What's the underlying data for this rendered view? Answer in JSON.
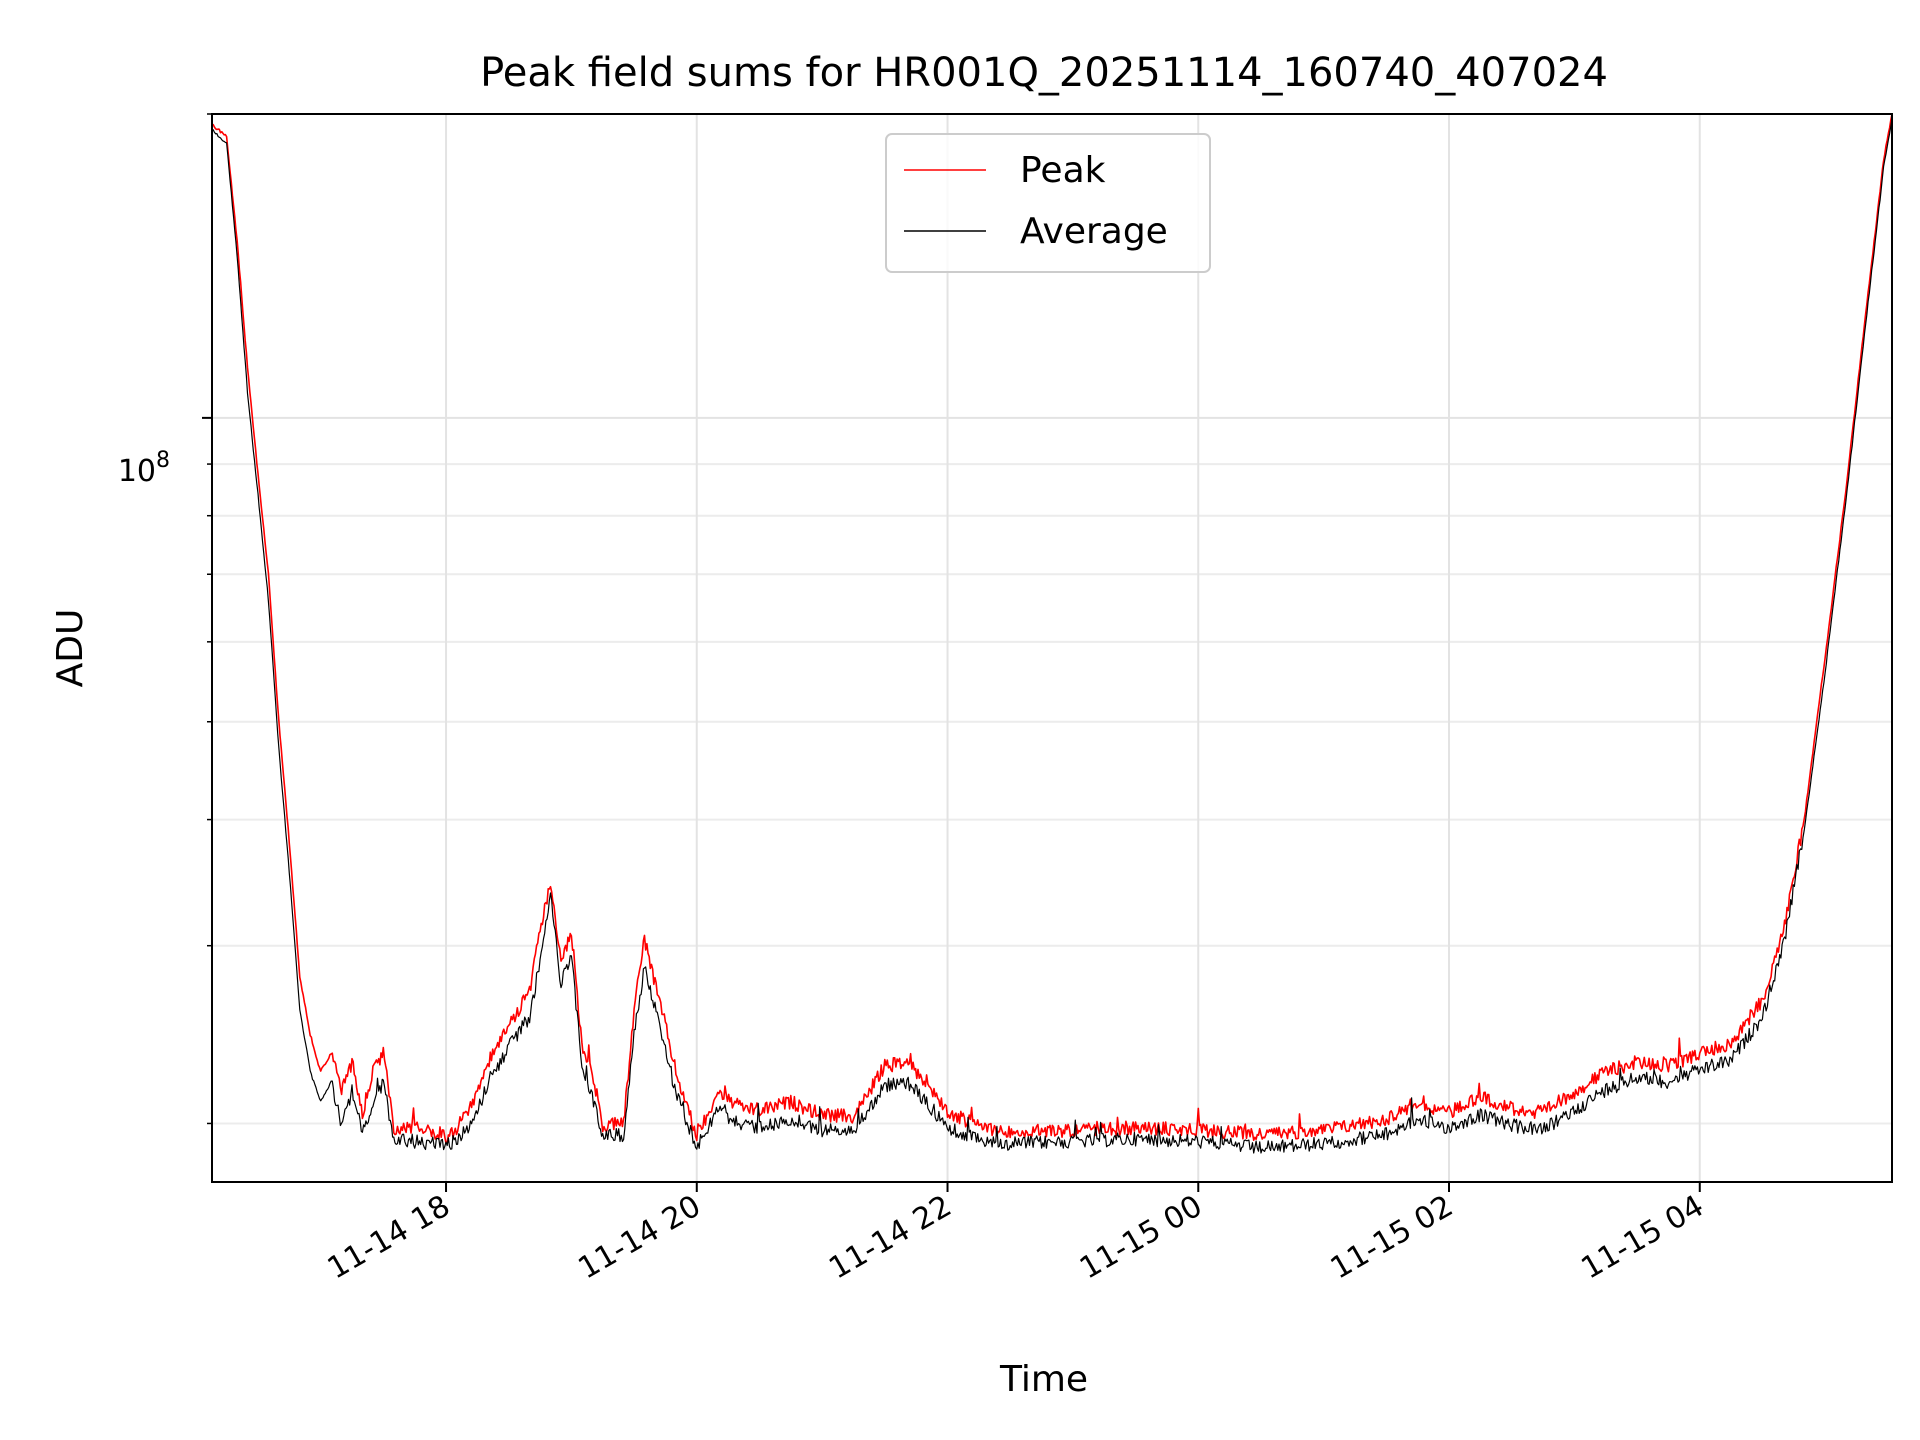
{
  "chart_data": {
    "type": "line",
    "title": "Peak field sums for HR001Q_20251114_160740_407024",
    "xlabel": "Time",
    "ylabel": "ADU",
    "yscale": "log",
    "ylim": [
      17500000,
      200000000
    ],
    "xlim": [
      "2025-11-14T16:08",
      "2025-11-15T05:32"
    ],
    "grid": true,
    "legend_position": "top-center",
    "x_ticks": [
      {
        "label": "11-14 18",
        "time": "2025-11-14T18:00"
      },
      {
        "label": "11-14 20",
        "time": "2025-11-14T20:00"
      },
      {
        "label": "11-14 22",
        "time": "2025-11-14T22:00"
      },
      {
        "label": "11-15 00",
        "time": "2025-11-15T00:00"
      },
      {
        "label": "11-15 02",
        "time": "2025-11-15T02:00"
      },
      {
        "label": "11-15 04",
        "time": "2025-11-15T04:00"
      }
    ],
    "y_ticks": [
      {
        "label": "10",
        "exponent": "8",
        "value": 100000000
      }
    ],
    "series": [
      {
        "name": "Peak",
        "color": "#ff0000",
        "points": [
          [
            "2025-11-14T16:08",
            195000000
          ],
          [
            "2025-11-14T16:15",
            190000000
          ],
          [
            "2025-11-14T16:20",
            150000000
          ],
          [
            "2025-11-14T16:25",
            112000000
          ],
          [
            "2025-11-14T16:30",
            88000000
          ],
          [
            "2025-11-14T16:35",
            70000000
          ],
          [
            "2025-11-14T16:40",
            50000000
          ],
          [
            "2025-11-14T16:45",
            38000000
          ],
          [
            "2025-11-14T16:50",
            28000000
          ],
          [
            "2025-11-14T16:55",
            24500000
          ],
          [
            "2025-11-14T17:00",
            22500000
          ],
          [
            "2025-11-14T17:05",
            23500000
          ],
          [
            "2025-11-14T17:10",
            21500000
          ],
          [
            "2025-11-14T17:15",
            23000000
          ],
          [
            "2025-11-14T17:20",
            20500000
          ],
          [
            "2025-11-14T17:25",
            22500000
          ],
          [
            "2025-11-14T17:30",
            23500000
          ],
          [
            "2025-11-14T17:35",
            19800000
          ],
          [
            "2025-11-14T17:45",
            19800000
          ],
          [
            "2025-11-14T18:00",
            19400000
          ],
          [
            "2025-11-14T18:05",
            19800000
          ],
          [
            "2025-11-14T18:10",
            20500000
          ],
          [
            "2025-11-14T18:15",
            21500000
          ],
          [
            "2025-11-14T18:20",
            23000000
          ],
          [
            "2025-11-14T18:30",
            25000000
          ],
          [
            "2025-11-14T18:40",
            27000000
          ],
          [
            "2025-11-14T18:45",
            31000000
          ],
          [
            "2025-11-14T18:50",
            34500000
          ],
          [
            "2025-11-14T18:55",
            29000000
          ],
          [
            "2025-11-14T19:00",
            31000000
          ],
          [
            "2025-11-14T19:05",
            24000000
          ],
          [
            "2025-11-14T19:10",
            22500000
          ],
          [
            "2025-11-14T19:15",
            19900000
          ],
          [
            "2025-11-14T19:25",
            20000000
          ],
          [
            "2025-11-14T19:30",
            26000000
          ],
          [
            "2025-11-14T19:35",
            30500000
          ],
          [
            "2025-11-14T19:40",
            27500000
          ],
          [
            "2025-11-14T19:45",
            25000000
          ],
          [
            "2025-11-14T19:50",
            22500000
          ],
          [
            "2025-11-14T20:00",
            19400000
          ],
          [
            "2025-11-14T20:10",
            21500000
          ],
          [
            "2025-11-14T20:20",
            20800000
          ],
          [
            "2025-11-14T20:30",
            20600000
          ],
          [
            "2025-11-14T20:45",
            21000000
          ],
          [
            "2025-11-14T21:00",
            20400000
          ],
          [
            "2025-11-14T21:15",
            20300000
          ],
          [
            "2025-11-14T21:30",
            22800000
          ],
          [
            "2025-11-14T21:40",
            23000000
          ],
          [
            "2025-11-14T21:50",
            22000000
          ],
          [
            "2025-11-14T22:00",
            20500000
          ],
          [
            "2025-11-14T22:15",
            19900000
          ],
          [
            "2025-11-14T22:30",
            19600000
          ],
          [
            "2025-11-14T23:00",
            19700000
          ],
          [
            "2025-11-14T23:30",
            19800000
          ],
          [
            "2025-11-15T00:00",
            19700000
          ],
          [
            "2025-11-15T00:30",
            19500000
          ],
          [
            "2025-11-15T01:00",
            19700000
          ],
          [
            "2025-11-15T01:30",
            20200000
          ],
          [
            "2025-11-15T01:45",
            21000000
          ],
          [
            "2025-11-15T02:00",
            20500000
          ],
          [
            "2025-11-15T02:15",
            21300000
          ],
          [
            "2025-11-15T02:30",
            20700000
          ],
          [
            "2025-11-15T02:45",
            20500000
          ],
          [
            "2025-11-15T03:00",
            21500000
          ],
          [
            "2025-11-15T03:15",
            22500000
          ],
          [
            "2025-11-15T03:30",
            23000000
          ],
          [
            "2025-11-15T03:45",
            22800000
          ],
          [
            "2025-11-15T04:00",
            23500000
          ],
          [
            "2025-11-15T04:15",
            24000000
          ],
          [
            "2025-11-15T04:30",
            26500000
          ],
          [
            "2025-11-15T04:40",
            31000000
          ],
          [
            "2025-11-15T04:50",
            40000000
          ],
          [
            "2025-11-15T05:00",
            58000000
          ],
          [
            "2025-11-15T05:10",
            85000000
          ],
          [
            "2025-11-15T05:20",
            130000000
          ],
          [
            "2025-11-15T05:28",
            180000000
          ],
          [
            "2025-11-15T05:32",
            200000000
          ]
        ]
      },
      {
        "name": "Average",
        "color": "#000000",
        "points": [
          [
            "2025-11-14T16:08",
            193000000
          ],
          [
            "2025-11-14T16:15",
            187000000
          ],
          [
            "2025-11-14T16:20",
            145000000
          ],
          [
            "2025-11-14T16:25",
            106000000
          ],
          [
            "2025-11-14T16:30",
            84000000
          ],
          [
            "2025-11-14T16:35",
            66000000
          ],
          [
            "2025-11-14T16:40",
            47000000
          ],
          [
            "2025-11-14T16:45",
            35500000
          ],
          [
            "2025-11-14T16:50",
            26000000
          ],
          [
            "2025-11-14T16:55",
            22500000
          ],
          [
            "2025-11-14T17:00",
            21000000
          ],
          [
            "2025-11-14T17:05",
            22000000
          ],
          [
            "2025-11-14T17:10",
            20000000
          ],
          [
            "2025-11-14T17:15",
            21500000
          ],
          [
            "2025-11-14T17:20",
            19500000
          ],
          [
            "2025-11-14T17:25",
            21000000
          ],
          [
            "2025-11-14T17:30",
            22000000
          ],
          [
            "2025-11-14T17:35",
            19300000
          ],
          [
            "2025-11-14T17:45",
            19200000
          ],
          [
            "2025-11-14T18:00",
            19000000
          ],
          [
            "2025-11-14T18:05",
            19300000
          ],
          [
            "2025-11-14T18:10",
            19800000
          ],
          [
            "2025-11-14T18:15",
            20500000
          ],
          [
            "2025-11-14T18:20",
            22000000
          ],
          [
            "2025-11-14T18:30",
            23800000
          ],
          [
            "2025-11-14T18:40",
            25500000
          ],
          [
            "2025-11-14T18:45",
            29000000
          ],
          [
            "2025-11-14T18:50",
            33500000
          ],
          [
            "2025-11-14T18:55",
            27500000
          ],
          [
            "2025-11-14T19:00",
            29500000
          ],
          [
            "2025-11-14T19:05",
            22800000
          ],
          [
            "2025-11-14T19:10",
            21300000
          ],
          [
            "2025-11-14T19:15",
            19400000
          ],
          [
            "2025-11-14T19:25",
            19500000
          ],
          [
            "2025-11-14T19:30",
            24500000
          ],
          [
            "2025-11-14T19:35",
            28500000
          ],
          [
            "2025-11-14T19:40",
            26000000
          ],
          [
            "2025-11-14T19:45",
            23800000
          ],
          [
            "2025-11-14T19:50",
            21400000
          ],
          [
            "2025-11-14T20:00",
            19000000
          ],
          [
            "2025-11-14T20:10",
            20600000
          ],
          [
            "2025-11-14T20:20",
            20000000
          ],
          [
            "2025-11-14T20:30",
            19800000
          ],
          [
            "2025-11-14T20:45",
            20200000
          ],
          [
            "2025-11-14T21:00",
            19700000
          ],
          [
            "2025-11-14T21:15",
            19600000
          ],
          [
            "2025-11-14T21:30",
            21800000
          ],
          [
            "2025-11-14T21:40",
            22000000
          ],
          [
            "2025-11-14T21:50",
            21000000
          ],
          [
            "2025-11-14T22:00",
            19800000
          ],
          [
            "2025-11-14T22:15",
            19300000
          ],
          [
            "2025-11-14T22:30",
            19100000
          ],
          [
            "2025-11-14T23:00",
            19200000
          ],
          [
            "2025-11-14T23:30",
            19300000
          ],
          [
            "2025-11-15T00:00",
            19200000
          ],
          [
            "2025-11-15T00:30",
            18900000
          ],
          [
            "2025-11-15T01:00",
            19100000
          ],
          [
            "2025-11-15T01:30",
            19500000
          ],
          [
            "2025-11-15T01:45",
            20200000
          ],
          [
            "2025-11-15T02:00",
            19800000
          ],
          [
            "2025-11-15T02:15",
            20400000
          ],
          [
            "2025-11-15T02:30",
            19900000
          ],
          [
            "2025-11-15T02:45",
            19700000
          ],
          [
            "2025-11-15T03:00",
            20600000
          ],
          [
            "2025-11-15T03:15",
            21600000
          ],
          [
            "2025-11-15T03:30",
            22200000
          ],
          [
            "2025-11-15T03:45",
            22000000
          ],
          [
            "2025-11-15T04:00",
            22600000
          ],
          [
            "2025-11-15T04:15",
            23100000
          ],
          [
            "2025-11-15T04:30",
            25500000
          ],
          [
            "2025-11-15T04:40",
            30000000
          ],
          [
            "2025-11-15T04:50",
            39000000
          ],
          [
            "2025-11-15T05:00",
            56000000
          ],
          [
            "2025-11-15T05:10",
            83000000
          ],
          [
            "2025-11-15T05:20",
            127000000
          ],
          [
            "2025-11-15T05:28",
            177000000
          ],
          [
            "2025-11-15T05:32",
            198000000
          ]
        ]
      }
    ]
  }
}
